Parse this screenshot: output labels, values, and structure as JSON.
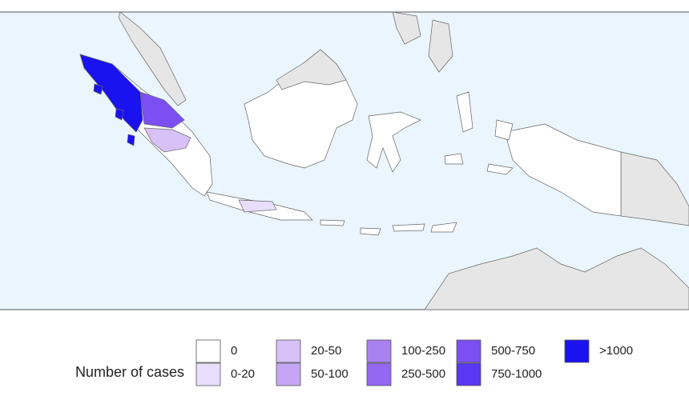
{
  "legend": {
    "title": "Number of cases",
    "items": [
      {
        "label": "0",
        "color": "#ffffff"
      },
      {
        "label": "0-20",
        "color": "#e9defb"
      },
      {
        "label": "20-50",
        "color": "#d8c1f7"
      },
      {
        "label": "50-100",
        "color": "#c4a6f4"
      },
      {
        "label": "100-250",
        "color": "#a881f0"
      },
      {
        "label": "250-500",
        "color": "#9468f0"
      },
      {
        "label": "500-750",
        "color": "#7b4ff2"
      },
      {
        "label": "750-1000",
        "color": "#5a36f5"
      },
      {
        "label": ">1000",
        "color": "#1a12ef"
      }
    ]
  }
}
